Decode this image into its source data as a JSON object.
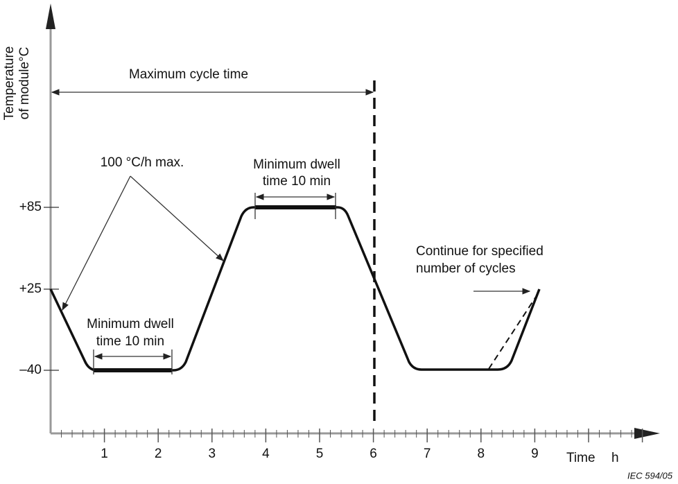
{
  "axes": {
    "y_label": [
      "Temperature",
      "of module°C"
    ],
    "x_label": "Time",
    "x_unit": "h",
    "y_ticks": [
      "+85",
      "+25",
      "–40"
    ],
    "x_ticks": [
      "1",
      "2",
      "3",
      "4",
      "5",
      "6",
      "7",
      "8",
      "9"
    ]
  },
  "annotations": {
    "cycle": "Maximum cycle time",
    "rate": "100 °C/h max.",
    "dwell_high": [
      "Minimum dwell",
      "time 10 min"
    ],
    "dwell_low": [
      "Minimum dwell",
      "time 10 min"
    ],
    "continue": [
      "Continue for specified",
      "number of cycles"
    ]
  },
  "footer": "IEC   594/05"
}
